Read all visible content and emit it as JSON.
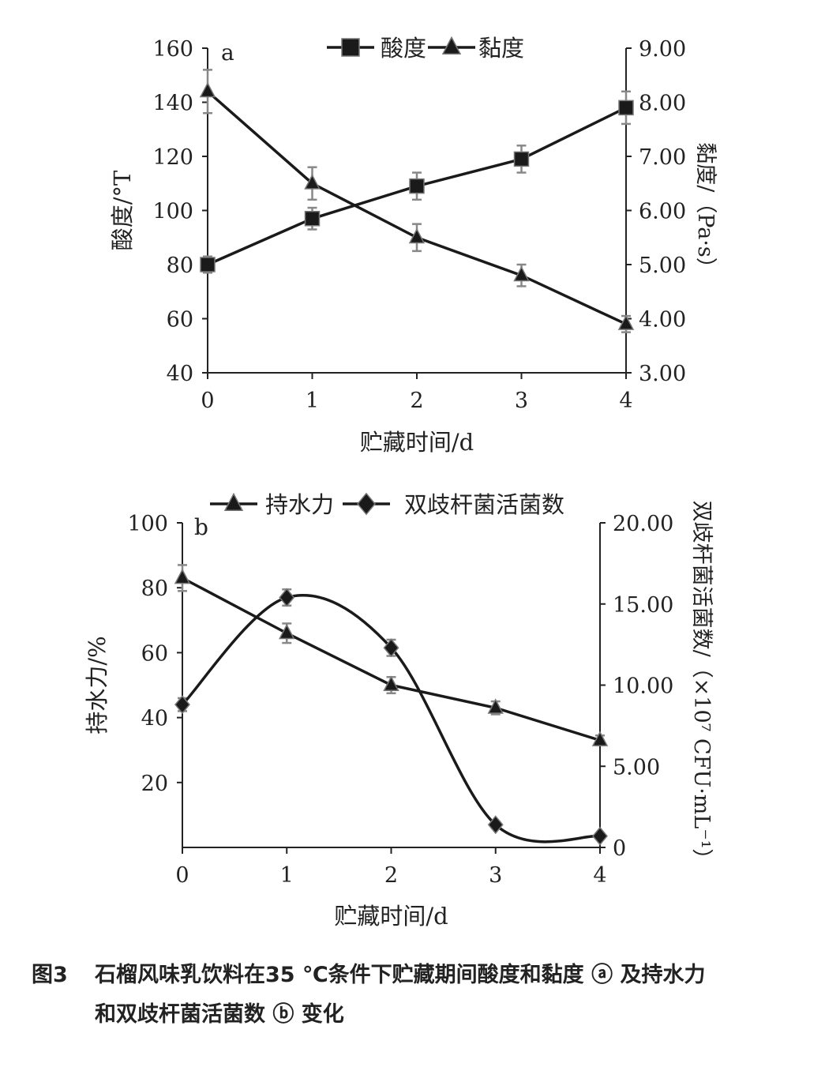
{
  "chart_data": [
    {
      "type": "line",
      "panel_label": "a",
      "x": [
        0,
        1,
        2,
        3,
        4
      ],
      "xlabel": "贮藏时间/d",
      "x_ticks": [
        "0",
        "1",
        "2",
        "3",
        "4"
      ],
      "ylabel": "酸度/°T",
      "y2label": "黏度/（Pa·s）",
      "ylim": [
        40,
        160
      ],
      "y2lim": [
        3.0,
        9.0
      ],
      "y_ticks": [
        "40",
        "60",
        "80",
        "100",
        "120",
        "140",
        "160"
      ],
      "y2_ticks": [
        "3.00",
        "4.00",
        "5.00",
        "6.00",
        "7.00",
        "8.00",
        "9.00"
      ],
      "legend_position": "top-center",
      "series": [
        {
          "name": "酸度",
          "axis": "left",
          "marker": "square",
          "values": [
            80,
            97,
            109,
            119,
            138
          ],
          "errors": [
            3,
            4,
            5,
            5,
            6
          ]
        },
        {
          "name": "黏度",
          "axis": "right",
          "marker": "triangle",
          "values": [
            8.2,
            6.5,
            5.5,
            4.8,
            3.9
          ],
          "errors": [
            0.4,
            0.3,
            0.25,
            0.2,
            0.15
          ]
        }
      ]
    },
    {
      "type": "line",
      "panel_label": "b",
      "x": [
        0,
        1,
        2,
        3,
        4
      ],
      "xlabel": "贮藏时间/d",
      "x_ticks": [
        "0",
        "1",
        "2",
        "3",
        "4"
      ],
      "ylabel": "持水力/%",
      "y2label": "双歧杆菌活菌数/（×10⁷ CFU·mL⁻¹）",
      "ylim": [
        0,
        100
      ],
      "y2lim": [
        0,
        20
      ],
      "y_ticks": [
        "20",
        "40",
        "60",
        "80",
        "100"
      ],
      "y2_ticks": [
        "0",
        "5.00",
        "10.00",
        "15.00",
        "20.00"
      ],
      "legend_position": "top-center",
      "series": [
        {
          "name": "持水力",
          "axis": "left",
          "marker": "triangle",
          "values": [
            83,
            66,
            50,
            43,
            33
          ],
          "errors": [
            4,
            3,
            2.5,
            2,
            1.5
          ]
        },
        {
          "name": "双歧杆菌活菌数",
          "axis": "right",
          "marker": "diamond",
          "smooth": true,
          "values": [
            8.8,
            15.4,
            12.3,
            1.4,
            0.7
          ],
          "errors": [
            0.4,
            0.5,
            0.5,
            0.2,
            0.1
          ]
        }
      ]
    }
  ],
  "caption": {
    "number": "图3",
    "line1": "石榴风味乳饮料在35 ℃条件下贮藏期间酸度和黏度 ⓐ 及持水力",
    "line2": "和双歧杆菌活菌数 ⓑ 变化"
  }
}
